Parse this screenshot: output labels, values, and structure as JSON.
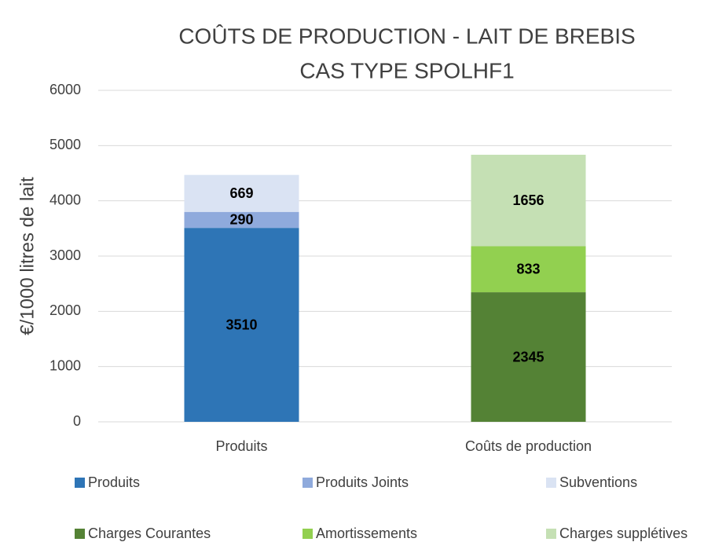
{
  "chart_data": {
    "type": "stacked_bar",
    "title": [
      "COÛTS DE PRODUCTION - LAIT DE BREBIS",
      "CAS TYPE SPOLHF1"
    ],
    "y_label": "€/1000 litres de lait",
    "categories": [
      "Produits",
      "Coûts de production"
    ],
    "series": [
      {
        "name": "Produits",
        "color": "#2e75b6",
        "values": [
          3510,
          null
        ]
      },
      {
        "name": "Produits Joints",
        "color": "#8faadc",
        "values": [
          290,
          null
        ]
      },
      {
        "name": "Subventions",
        "color": "#dae3f3",
        "values": [
          669,
          null
        ]
      },
      {
        "name": "Charges Courantes",
        "color": "#548235",
        "values": [
          null,
          2345
        ]
      },
      {
        "name": "Amortissements",
        "color": "#92d050",
        "values": [
          null,
          833
        ]
      },
      {
        "name": "Charges supplétives",
        "color": "#c5e0b4",
        "values": [
          null,
          1656
        ]
      }
    ],
    "ylim": [
      0,
      6000
    ],
    "yticks": [
      0,
      1000,
      2000,
      3000,
      4000,
      5000,
      6000
    ],
    "grid": true,
    "legend": "bottom"
  }
}
